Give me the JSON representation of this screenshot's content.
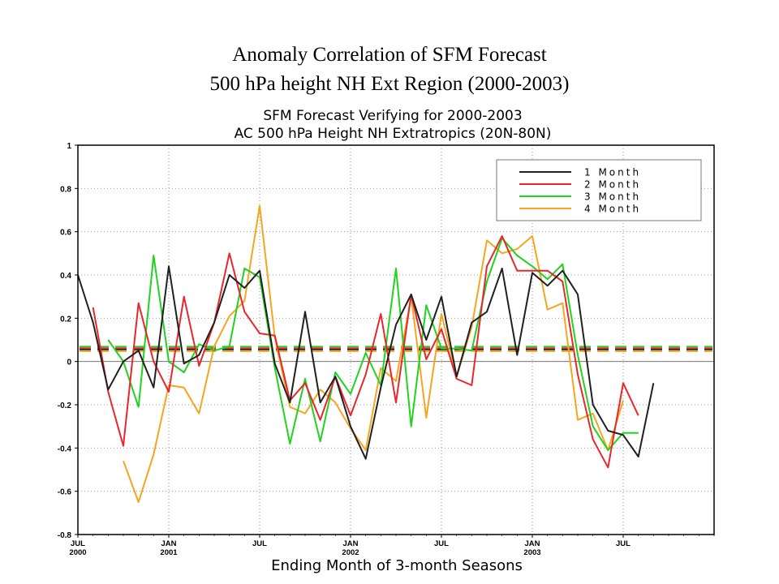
{
  "slide": {
    "title_line1": "Anomaly  Correlation of SFM Forecast",
    "title_line2": "500 hPa height NH Ext Region (2000-2003)"
  },
  "chart_data": {
    "type": "line",
    "title": "SFM Forecast Verifying for 2000-2003",
    "subtitle": "AC 500 hPa Height NH Extratropics (20N-80N)",
    "xlabel": "Ending Month of 3-month Seasons",
    "ylabel": "",
    "ylim": [
      -0.8,
      1.0
    ],
    "y_ticks": [
      "1",
      "0.8",
      "0.6",
      "0.4",
      "0.2",
      "0",
      "-0.2",
      "-0.4",
      "-0.6",
      "-0.8"
    ],
    "y_tick_values": [
      1.0,
      0.8,
      0.6,
      0.4,
      0.2,
      0.0,
      -0.2,
      -0.4,
      -0.6,
      -0.8
    ],
    "x_start": "2000-07",
    "x_end": "2004-01",
    "x_ticks": [
      {
        "month": "2000-07",
        "top": "JUL",
        "bottom": "2000"
      },
      {
        "month": "2001-01",
        "top": "JAN",
        "bottom": "2001"
      },
      {
        "month": "2001-07",
        "top": "JUL",
        "bottom": ""
      },
      {
        "month": "2002-01",
        "top": "JAN",
        "bottom": "2002"
      },
      {
        "month": "2002-07",
        "top": "JUL",
        "bottom": ""
      },
      {
        "month": "2003-01",
        "top": "JAN",
        "bottom": "2003"
      },
      {
        "month": "2003-07",
        "top": "JUL",
        "bottom": ""
      }
    ],
    "grid": true,
    "legend_position": "top-right",
    "reference_lines": [
      {
        "series": "1 Month",
        "y": 0.055
      },
      {
        "series": "2 Month",
        "y": 0.062
      },
      {
        "series": "3 Month",
        "y": 0.069
      },
      {
        "series": "4 Month",
        "y": 0.047
      }
    ],
    "series": [
      {
        "name": "1 Month",
        "color": "#202020",
        "start": "2000-07",
        "values": [
          0.4,
          0.18,
          -0.13,
          0.0,
          0.05,
          -0.12,
          0.44,
          -0.01,
          0.03,
          0.18,
          0.4,
          0.34,
          0.42,
          -0.01,
          -0.19,
          0.23,
          -0.19,
          -0.07,
          -0.3,
          -0.45,
          -0.12,
          0.17,
          0.31,
          0.1,
          0.3,
          -0.07,
          0.18,
          0.23,
          0.43,
          0.03,
          0.41,
          0.35,
          0.42,
          0.31,
          -0.2,
          -0.32,
          -0.34,
          -0.44,
          -0.1
        ]
      },
      {
        "name": "2 Month",
        "color": "#e8262c",
        "start": "2000-08",
        "values": [
          0.25,
          -0.14,
          -0.39,
          0.27,
          0.0,
          -0.14,
          0.3,
          -0.02,
          0.18,
          0.5,
          0.23,
          0.13,
          0.12,
          -0.18,
          -0.1,
          -0.27,
          -0.07,
          -0.25,
          -0.06,
          0.22,
          -0.19,
          0.31,
          0.01,
          0.15,
          -0.08,
          -0.11,
          0.44,
          0.58,
          0.42,
          0.42,
          0.42,
          0.37,
          -0.06,
          -0.36,
          -0.49,
          -0.1,
          -0.25
        ]
      },
      {
        "name": "3 Month",
        "color": "#1fd31f",
        "start": "2000-09",
        "values": [
          0.1,
          0.0,
          -0.21,
          0.49,
          0.0,
          -0.05,
          0.08,
          0.05,
          0.07,
          0.43,
          0.39,
          -0.03,
          -0.38,
          -0.08,
          -0.37,
          -0.05,
          -0.15,
          0.04,
          -0.11,
          0.43,
          -0.3,
          0.26,
          0.06,
          0.06,
          0.05,
          0.37,
          0.57,
          0.49,
          0.44,
          0.38,
          0.45,
          0.03,
          -0.3,
          -0.41,
          -0.33,
          -0.33
        ]
      },
      {
        "name": "4 Month",
        "color": "#f7a51e",
        "start": "2000-10",
        "values": [
          -0.46,
          -0.65,
          -0.43,
          -0.11,
          -0.12,
          -0.24,
          0.07,
          0.21,
          0.28,
          0.72,
          0.11,
          -0.21,
          -0.24,
          -0.13,
          -0.19,
          -0.31,
          -0.41,
          -0.03,
          -0.09,
          0.3,
          -0.26,
          0.22,
          -0.07,
          0.16,
          0.56,
          0.5,
          0.52,
          0.58,
          0.24,
          0.27,
          -0.27,
          -0.24,
          -0.41,
          -0.18
        ]
      }
    ]
  }
}
